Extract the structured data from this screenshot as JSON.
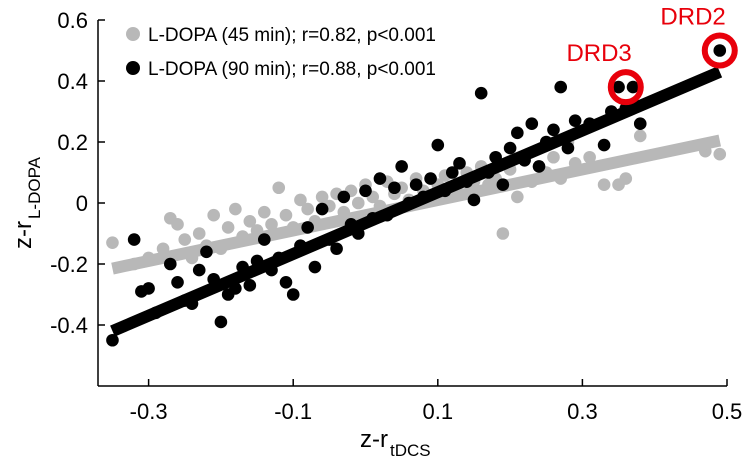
{
  "chart_data": {
    "type": "scatter",
    "xlabel": {
      "main": "z-r",
      "sub": "tDCS"
    },
    "ylabel": {
      "main": "z-r",
      "sub": "L-DOPA"
    },
    "xlim": [
      -0.37,
      0.5
    ],
    "ylim": [
      -0.6,
      0.6
    ],
    "xticks": [
      -0.3,
      -0.1,
      0.1,
      0.3,
      0.5
    ],
    "xtick_labels": [
      "-0.3",
      "-0.1",
      "0.1",
      "0.3",
      "0.5"
    ],
    "yticks": [
      -0.4,
      -0.2,
      0,
      0.2,
      0.4,
      0.6
    ],
    "ytick_labels": [
      "-0.4",
      "-0.2",
      "0",
      "0.2",
      "0.4",
      "0.6"
    ],
    "grid": false,
    "legend_position": "top-left",
    "series": [
      {
        "name": "L-DOPA (45 min); r=0.82, p<0.001",
        "color": "#b8b8b8",
        "fit": {
          "x": [
            -0.35,
            0.49
          ],
          "y": [
            -0.215,
            0.205
          ]
        },
        "points": [
          [
            -0.35,
            -0.13
          ],
          [
            -0.32,
            -0.2
          ],
          [
            -0.3,
            -0.18
          ],
          [
            -0.28,
            -0.15
          ],
          [
            -0.27,
            -0.05
          ],
          [
            -0.26,
            -0.07
          ],
          [
            -0.25,
            -0.12
          ],
          [
            -0.24,
            -0.18
          ],
          [
            -0.23,
            -0.1
          ],
          [
            -0.22,
            -0.14
          ],
          [
            -0.21,
            -0.04
          ],
          [
            -0.2,
            -0.15
          ],
          [
            -0.19,
            -0.08
          ],
          [
            -0.18,
            -0.02
          ],
          [
            -0.17,
            -0.11
          ],
          [
            -0.16,
            -0.06
          ],
          [
            -0.15,
            -0.09
          ],
          [
            -0.14,
            -0.03
          ],
          [
            -0.13,
            -0.07
          ],
          [
            -0.12,
            0.05
          ],
          [
            -0.11,
            -0.04
          ],
          [
            -0.1,
            -0.08
          ],
          [
            -0.09,
            0.01
          ],
          [
            -0.08,
            -0.02
          ],
          [
            -0.07,
            -0.06
          ],
          [
            -0.06,
            0.02
          ],
          [
            -0.05,
            -0.01
          ],
          [
            -0.04,
            0.03
          ],
          [
            -0.03,
            -0.03
          ],
          [
            -0.02,
            0.04
          ],
          [
            -0.01,
            0.0
          ],
          [
            0.0,
            0.06
          ],
          [
            0.01,
            0.02
          ],
          [
            0.02,
            -0.01
          ],
          [
            0.03,
            0.07
          ],
          [
            0.04,
            0.03
          ],
          [
            0.05,
            0.05
          ],
          [
            0.06,
            0.01
          ],
          [
            0.07,
            0.08
          ],
          [
            0.08,
            0.04
          ],
          [
            0.09,
            0.02
          ],
          [
            0.1,
            0.06
          ],
          [
            0.11,
            0.09
          ],
          [
            0.12,
            0.05
          ],
          [
            0.13,
            0.03
          ],
          [
            0.14,
            0.1
          ],
          [
            0.15,
            0.07
          ],
          [
            0.16,
            0.12
          ],
          [
            0.17,
            0.06
          ],
          [
            0.18,
            0.08
          ],
          [
            0.19,
            -0.1
          ],
          [
            0.2,
            0.11
          ],
          [
            0.21,
            0.02
          ],
          [
            0.22,
            0.14
          ],
          [
            0.23,
            0.07
          ],
          [
            0.24,
            0.12
          ],
          [
            0.25,
            0.1
          ],
          [
            0.26,
            0.15
          ],
          [
            0.27,
            0.08
          ],
          [
            0.28,
            0.2
          ],
          [
            0.29,
            0.13
          ],
          [
            0.31,
            0.15
          ],
          [
            0.33,
            0.06
          ],
          [
            0.35,
            0.06
          ],
          [
            0.36,
            0.08
          ],
          [
            0.38,
            0.22
          ],
          [
            0.47,
            0.17
          ],
          [
            0.49,
            0.16
          ]
        ]
      },
      {
        "name": "L-DOPA (90 min); r=0.88, p<0.001",
        "color": "#000000",
        "fit": {
          "x": [
            -0.35,
            0.49
          ],
          "y": [
            -0.42,
            0.43
          ]
        },
        "points": [
          [
            -0.35,
            -0.45
          ],
          [
            -0.32,
            -0.12
          ],
          [
            -0.31,
            -0.29
          ],
          [
            -0.3,
            -0.28
          ],
          [
            -0.29,
            -0.36
          ],
          [
            -0.27,
            -0.2
          ],
          [
            -0.26,
            -0.26
          ],
          [
            -0.25,
            -0.32
          ],
          [
            -0.24,
            -0.33
          ],
          [
            -0.23,
            -0.22
          ],
          [
            -0.22,
            -0.16
          ],
          [
            -0.21,
            -0.25
          ],
          [
            -0.2,
            -0.39
          ],
          [
            -0.19,
            -0.3
          ],
          [
            -0.18,
            -0.28
          ],
          [
            -0.17,
            -0.21
          ],
          [
            -0.16,
            -0.27
          ],
          [
            -0.15,
            -0.19
          ],
          [
            -0.14,
            -0.12
          ],
          [
            -0.13,
            -0.22
          ],
          [
            -0.12,
            -0.18
          ],
          [
            -0.11,
            -0.26
          ],
          [
            -0.1,
            -0.3
          ],
          [
            -0.09,
            -0.14
          ],
          [
            -0.08,
            -0.08
          ],
          [
            -0.07,
            -0.21
          ],
          [
            -0.06,
            -0.02
          ],
          [
            -0.05,
            -0.12
          ],
          [
            -0.04,
            -0.15
          ],
          [
            -0.03,
            0.02
          ],
          [
            -0.02,
            -0.07
          ],
          [
            -0.01,
            -0.1
          ],
          [
            0.0,
            0.04
          ],
          [
            0.01,
            -0.05
          ],
          [
            0.02,
            0.08
          ],
          [
            0.03,
            -0.04
          ],
          [
            0.04,
            0.05
          ],
          [
            0.05,
            0.12
          ],
          [
            0.06,
            0.0
          ],
          [
            0.07,
            0.06
          ],
          [
            0.08,
            0.02
          ],
          [
            0.09,
            0.08
          ],
          [
            0.1,
            0.19
          ],
          [
            0.11,
            0.04
          ],
          [
            0.12,
            0.1
          ],
          [
            0.13,
            0.13
          ],
          [
            0.14,
            0.07
          ],
          [
            0.15,
            0.01
          ],
          [
            0.16,
            0.36
          ],
          [
            0.17,
            0.1
          ],
          [
            0.18,
            0.15
          ],
          [
            0.19,
            0.06
          ],
          [
            0.2,
            0.18
          ],
          [
            0.21,
            0.23
          ],
          [
            0.22,
            0.14
          ],
          [
            0.23,
            0.26
          ],
          [
            0.24,
            0.12
          ],
          [
            0.25,
            0.2
          ],
          [
            0.26,
            0.24
          ],
          [
            0.27,
            0.38
          ],
          [
            0.28,
            0.18
          ],
          [
            0.29,
            0.27
          ],
          [
            0.31,
            0.26
          ],
          [
            0.33,
            0.19
          ],
          [
            0.34,
            0.3
          ],
          [
            0.35,
            0.38
          ],
          [
            0.36,
            0.31
          ],
          [
            0.37,
            0.38
          ],
          [
            0.38,
            0.26
          ],
          [
            0.49,
            0.5
          ]
        ]
      }
    ],
    "annotations": [
      {
        "label": "DRD3",
        "x": 0.36,
        "y": 0.38
      },
      {
        "label": "DRD2",
        "x": 0.49,
        "y": 0.5
      }
    ],
    "annotation_color": "#e8000b"
  }
}
